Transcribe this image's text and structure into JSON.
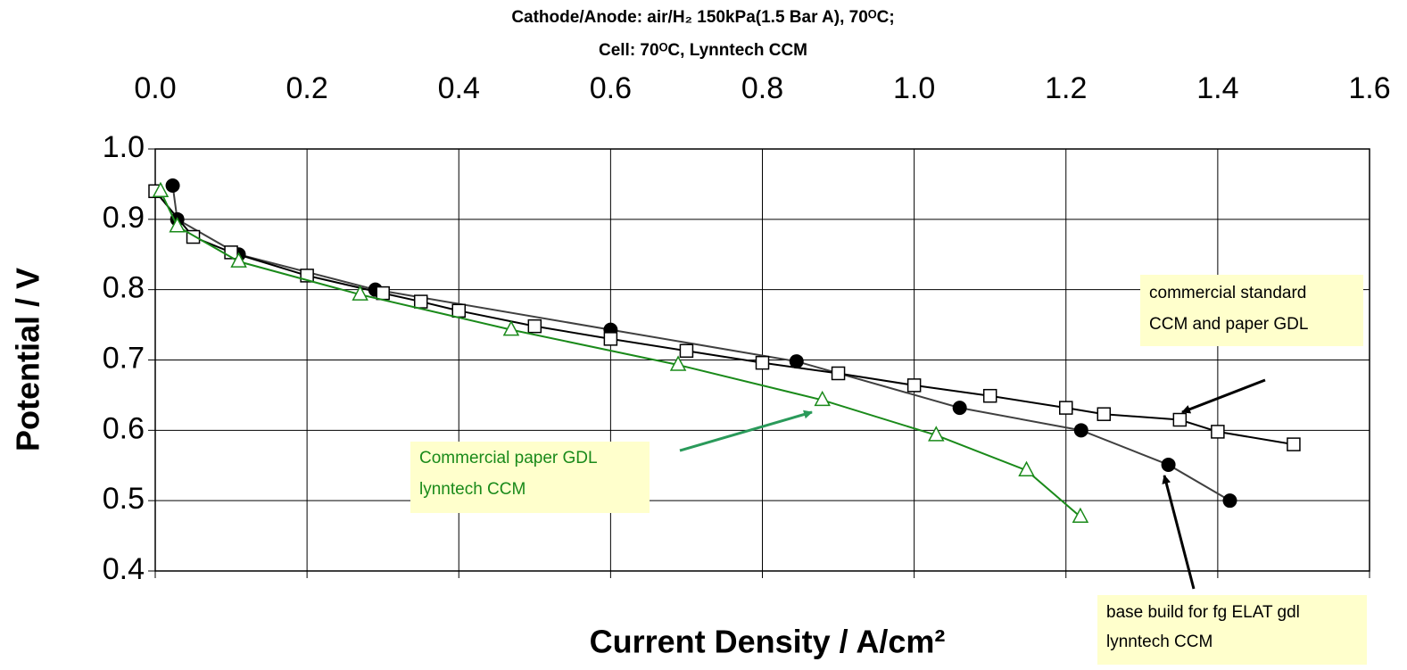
{
  "chart_data": {
    "type": "line",
    "title": [
      "Cathode/Anode: air/H₂ 150kPa(1.5 Bar A), 70ᴼC;",
      "Cell: 70ᴼC, Lynntech CCM"
    ],
    "x_label": "Current Density / A/cm²",
    "y_label": "Potential / V",
    "xlim": [
      0,
      1.6
    ],
    "xticks": [
      {
        "value": 0,
        "label": "0.0"
      },
      0.2,
      0.4,
      0.6,
      0.8,
      {
        "value": 1,
        "label": "1.0"
      },
      1.2,
      1.4,
      1.6
    ],
    "ylim": [
      0.4,
      1.0
    ],
    "yticks": [
      0.4,
      0.5,
      0.6,
      0.7,
      0.8,
      0.9,
      {
        "value": 1,
        "label": "1.0"
      }
    ],
    "grid": true,
    "series": [
      {
        "color": "#404040",
        "marker": "circle",
        "x": [
          0.023,
          0.029,
          0.11,
          0.29,
          0.6,
          0.845,
          1.06,
          1.22,
          1.335,
          1.416
        ],
        "values": [
          0.948,
          0.9,
          0.85,
          0.8,
          0.743,
          0.698,
          0.632,
          0.6,
          0.551,
          0.5
        ]
      },
      {
        "color": "#000000",
        "marker": "square",
        "x": [
          0,
          0.05,
          0.1,
          0.2,
          0.3,
          0.35,
          0.4,
          0.5,
          0.6,
          0.7,
          0.8,
          0.9,
          1.0,
          1.1,
          1.2,
          1.25,
          1.35,
          1.4,
          1.5
        ],
        "values": [
          0.94,
          0.875,
          0.853,
          0.82,
          0.795,
          0.783,
          0.77,
          0.748,
          0.73,
          0.713,
          0.696,
          0.681,
          0.664,
          0.649,
          0.632,
          0.623,
          0.615,
          0.598,
          0.58
        ]
      },
      {
        "color": "#1a8a1a",
        "marker": "triangle",
        "x": [
          0.007,
          0.029,
          0.11,
          0.27,
          0.469,
          0.689,
          0.879,
          1.029,
          1.148,
          1.219
        ],
        "values": [
          0.94,
          0.89,
          0.84,
          0.793,
          0.743,
          0.693,
          0.643,
          0.593,
          0.543,
          0.477
        ]
      }
    ],
    "annotations": [
      [
        "commercial standard",
        "CCM and paper GDL"
      ],
      [
        "Commercial paper GDL",
        "lynntech CCM"
      ],
      [
        "base build for fg ELAT gdl",
        "lynntech CCM"
      ]
    ]
  }
}
